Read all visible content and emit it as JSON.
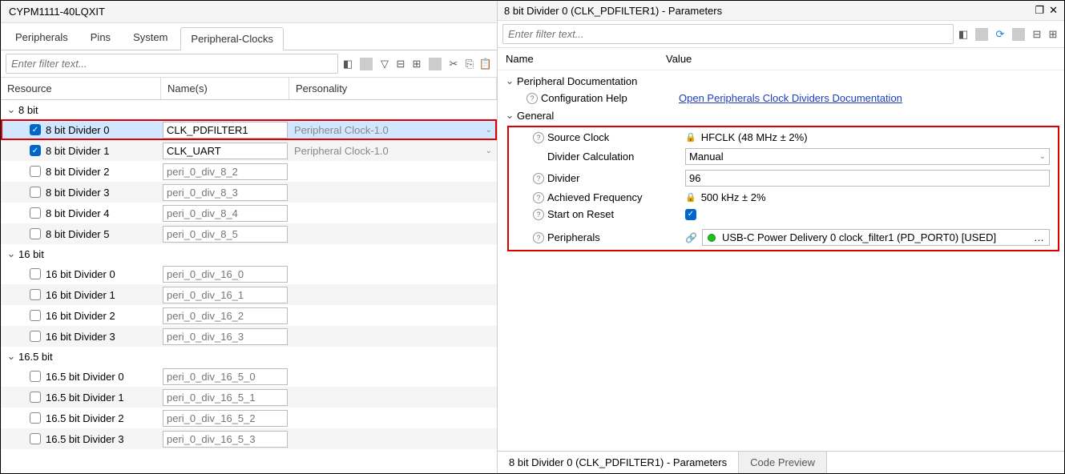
{
  "left_panel": {
    "title": "CYPM1111-40LQXIT",
    "tabs": [
      "Peripherals",
      "Pins",
      "System",
      "Peripheral-Clocks"
    ],
    "active_tab_index": 3,
    "filter_placeholder": "Enter filter text...",
    "columns": {
      "resource": "Resource",
      "names": "Name(s)",
      "personality": "Personality"
    },
    "groups": [
      {
        "label": "8 bit",
        "rows": [
          {
            "resource": "8 bit Divider 0",
            "name": "CLK_PDFILTER1",
            "personality": "Peripheral Clock-1.0",
            "checked": true,
            "selected": true,
            "highlight": true,
            "has_pers_dd": true
          },
          {
            "resource": "8 bit Divider 1",
            "name": "CLK_UART",
            "personality": "Peripheral Clock-1.0",
            "checked": true,
            "has_pers_dd": true
          },
          {
            "resource": "8 bit Divider 2",
            "name_placeholder": "peri_0_div_8_2",
            "checked": false
          },
          {
            "resource": "8 bit Divider 3",
            "name_placeholder": "peri_0_div_8_3",
            "checked": false
          },
          {
            "resource": "8 bit Divider 4",
            "name_placeholder": "peri_0_div_8_4",
            "checked": false
          },
          {
            "resource": "8 bit Divider 5",
            "name_placeholder": "peri_0_div_8_5",
            "checked": false
          }
        ]
      },
      {
        "label": "16 bit",
        "rows": [
          {
            "resource": "16 bit Divider 0",
            "name_placeholder": "peri_0_div_16_0",
            "checked": false
          },
          {
            "resource": "16 bit Divider 1",
            "name_placeholder": "peri_0_div_16_1",
            "checked": false
          },
          {
            "resource": "16 bit Divider 2",
            "name_placeholder": "peri_0_div_16_2",
            "checked": false
          },
          {
            "resource": "16 bit Divider 3",
            "name_placeholder": "peri_0_div_16_3",
            "checked": false
          }
        ]
      },
      {
        "label": "16.5 bit",
        "rows": [
          {
            "resource": "16.5 bit Divider 0",
            "name_placeholder": "peri_0_div_16_5_0",
            "checked": false
          },
          {
            "resource": "16.5 bit Divider 1",
            "name_placeholder": "peri_0_div_16_5_1",
            "checked": false
          },
          {
            "resource": "16.5 bit Divider 2",
            "name_placeholder": "peri_0_div_16_5_2",
            "checked": false
          },
          {
            "resource": "16.5 bit Divider 3",
            "name_placeholder": "peri_0_div_16_5_3",
            "checked": false
          }
        ]
      }
    ]
  },
  "right_panel": {
    "title": "8 bit Divider 0 (CLK_PDFILTER1) - Parameters",
    "filter_placeholder": "Enter filter text...",
    "columns": {
      "name": "Name",
      "value": "Value"
    },
    "doc_group": "Peripheral Documentation",
    "config_help": "Configuration Help",
    "doc_link": "Open Peripherals Clock Dividers Documentation",
    "general_group": "General",
    "source_clock_label": "Source Clock",
    "source_clock_value": "HFCLK (48 MHz ± 2%)",
    "divider_calc_label": "Divider Calculation",
    "divider_calc_value": "Manual",
    "divider_label": "Divider",
    "divider_value": "96",
    "achieved_freq_label": "Achieved Frequency",
    "achieved_freq_value": "500 kHz ± 2%",
    "start_on_reset_label": "Start on Reset",
    "start_on_reset_checked": true,
    "peripherals_label": "Peripherals",
    "peripherals_value": "USB-C Power Delivery 0 clock_filter1 (PD_PORT0) [USED]",
    "bottom_tabs": [
      "8 bit Divider 0 (CLK_PDFILTER1) - Parameters",
      "Code Preview"
    ],
    "bottom_active_index": 0
  },
  "colors": {
    "highlight_border": "#d00000",
    "selected_row_bg": "#d0e7ff",
    "checked_bg": "#0066cc",
    "link_color": "#1a3fc4",
    "status_dot": "#1fbf1f"
  }
}
